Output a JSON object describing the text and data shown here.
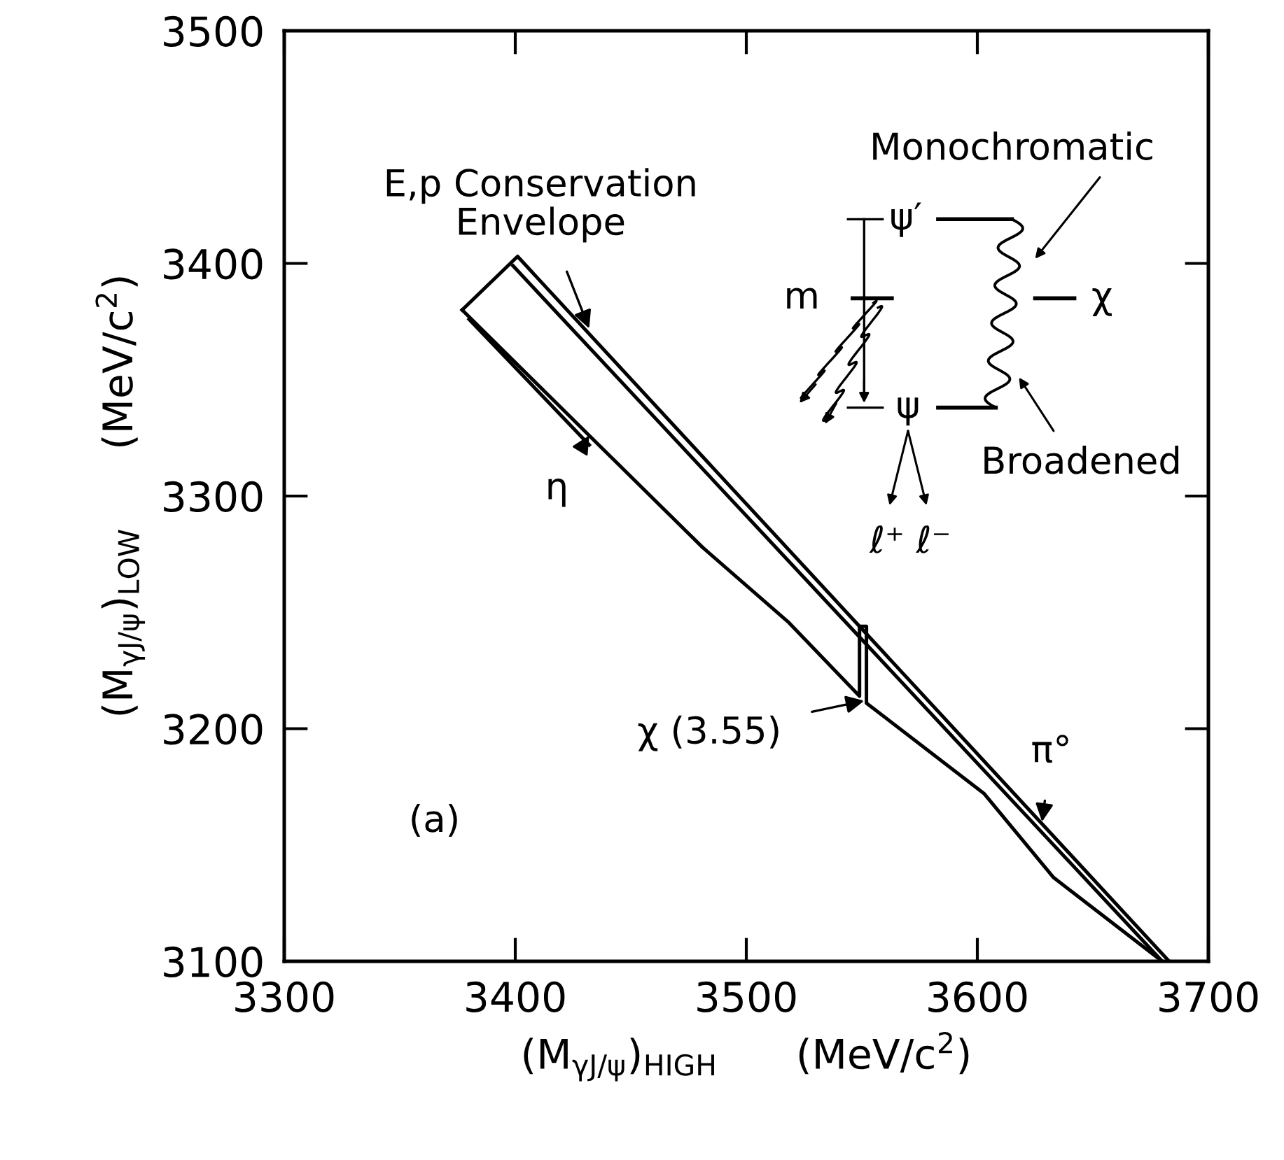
{
  "chart_data": {
    "type": "line",
    "xlabel": "(M$_{γJ/ψ}$)$_{HIGH}$      (MeV/c$^{2}$)",
    "ylabel": "(M$_{γJ/ψ}$)$_{LOW}$      (MeV/c$^{2}$)",
    "xlim": [
      3300,
      3700
    ],
    "xticks": [
      3300,
      3400,
      3500,
      3600,
      3700
    ],
    "ylim": [
      3100,
      3500
    ],
    "yticks": [
      3100,
      3200,
      3300,
      3400,
      3500
    ],
    "grid": false,
    "legend": false,
    "marker": "none",
    "line_style": "solid",
    "series": [
      {
        "color": "#000000",
        "x": [
          3377,
          3401,
          3683
        ],
        "values": [
          3380,
          3403,
          3100
        ]
      },
      {
        "color": "#000000",
        "x": [
          3399,
          3680
        ],
        "values": [
          3399,
          3100
        ]
      },
      {
        "color": "#000000",
        "x": [
          3377,
          3432,
          3481,
          3518,
          3549,
          3549,
          3552,
          3552,
          3603,
          3633,
          3680
        ],
        "values": [
          3380,
          3326,
          3278,
          3246,
          3214,
          3244,
          3244,
          3211,
          3172,
          3136,
          3100
        ]
      },
      {
        "color": "#000000",
        "x": [
          3380,
          3432
        ],
        "values": [
          3376,
          3322
        ]
      }
    ],
    "annotations": [
      {
        "text": "E,p Conservation\nEnvelope",
        "x": 3432,
        "y": 3372
      },
      {
        "text": "η",
        "x": 3432,
        "y": 3326
      },
      {
        "text": "χ (3.55)",
        "x": 3551,
        "y": 3212
      },
      {
        "text": "π°",
        "x": 3628,
        "y": 3160
      },
      "(a)",
      "Monochromatic",
      "ψ′",
      "m",
      "χ",
      "ψ",
      "Broadened",
      "ℓ⁺ ℓ⁻"
    ]
  }
}
